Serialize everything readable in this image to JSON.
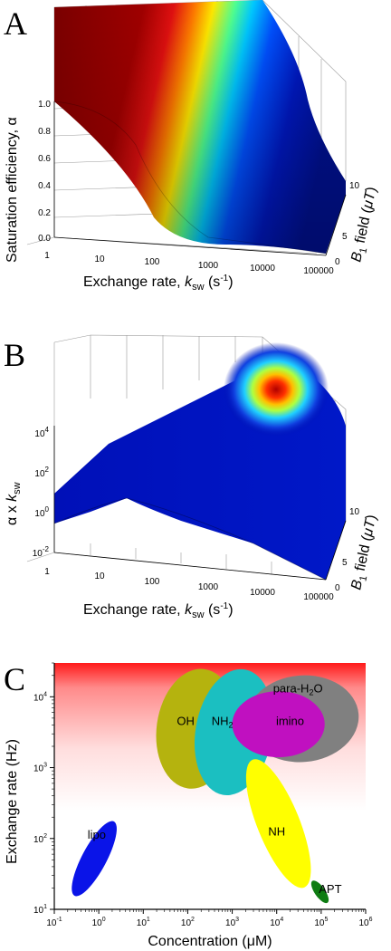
{
  "panels": {
    "A": {
      "letter": "A",
      "z_label": "Saturation efficiency, α",
      "x_label_pre": "Exchange rate, ",
      "x_label_k": "k",
      "x_label_sub": "sw",
      "x_label_post": " (s",
      "x_label_sup": "-1",
      "x_label_end": ")",
      "b_label_pre": "B",
      "b_label_sub": "1",
      "b_label_post": " field (",
      "b_label_mu": "μT",
      "b_label_end": ")",
      "z_ticks": [
        "1.0",
        "0.8",
        "0.6",
        "0.4",
        "0.2",
        "0.0"
      ],
      "x_ticks": [
        "1",
        "10",
        "100",
        "1000",
        "10000",
        "100000"
      ],
      "b_ticks": [
        "0",
        "5",
        "10"
      ]
    },
    "B": {
      "letter": "B",
      "z_label_pre": "α x ",
      "z_label_k": "k",
      "z_label_sub": "sw",
      "x_label_pre": "Exchange rate, ",
      "x_label_k": "k",
      "x_label_sub": "sw",
      "x_label_post": " (s",
      "x_label_sup": "-1",
      "x_label_end": ")",
      "b_label_pre": "B",
      "b_label_sub": "1",
      "b_label_post": " field (",
      "b_label_mu": "μT",
      "b_label_end": ")",
      "z_ticks": [
        {
          "base": "10",
          "exp": "4"
        },
        {
          "base": "10",
          "exp": "2"
        },
        {
          "base": "10",
          "exp": "0"
        },
        {
          "base": "10",
          "exp": "-2"
        }
      ],
      "x_ticks": [
        "1",
        "10",
        "100",
        "1000",
        "10000",
        "100000"
      ],
      "b_ticks": [
        "0",
        "5",
        "10"
      ]
    },
    "C": {
      "letter": "C",
      "x_label": "Concentration (μM)",
      "y_label": "Exchange rate (Hz)",
      "x_ticks": [
        {
          "base": "10",
          "exp": "-1"
        },
        {
          "base": "10",
          "exp": "0"
        },
        {
          "base": "10",
          "exp": "1"
        },
        {
          "base": "10",
          "exp": "2"
        },
        {
          "base": "10",
          "exp": "3"
        },
        {
          "base": "10",
          "exp": "4"
        },
        {
          "base": "10",
          "exp": "5"
        },
        {
          "base": "10",
          "exp": "6"
        }
      ],
      "y_ticks": [
        {
          "base": "10",
          "exp": "1"
        },
        {
          "base": "10",
          "exp": "2"
        },
        {
          "base": "10",
          "exp": "3"
        },
        {
          "base": "10",
          "exp": "4"
        }
      ]
    }
  },
  "chart_data": [
    {
      "type": "surface3d",
      "panel": "A",
      "xlabel": "Exchange rate, ksw (s-1)",
      "ylabel": "B1 field (μT)",
      "zlabel": "Saturation efficiency, α",
      "x_scale": "log",
      "xlim": [
        1,
        100000
      ],
      "ylim": [
        0,
        10
      ],
      "zlim": [
        0,
        1
      ],
      "colormap": "jet",
      "description_values": {
        "ksw": [
          1,
          10,
          100,
          1000,
          10000,
          100000
        ],
        "alpha_at_B1_10": [
          1.0,
          1.0,
          1.0,
          0.95,
          0.5,
          0.05
        ]
      }
    },
    {
      "type": "surface3d",
      "panel": "B",
      "xlabel": "Exchange rate, ksw (s-1)",
      "ylabel": "B1 field (μT)",
      "zlabel": "α x ksw",
      "x_scale": "log",
      "z_scale": "log",
      "xlim": [
        1,
        100000
      ],
      "ylim": [
        0,
        10
      ],
      "zlim": [
        0.01,
        10000
      ],
      "colormap": "jet"
    },
    {
      "type": "scatter",
      "panel": "C",
      "x_scale": "log",
      "y_scale": "log",
      "xlim": [
        0.1,
        1000000
      ],
      "ylim": [
        10,
        30000
      ],
      "xlabel": "Concentration (μM)",
      "ylabel": "Exchange rate (Hz)",
      "regions": [
        {
          "label": "lipo",
          "conc_range": [
            0.25,
            2.5
          ],
          "rate_range": [
            15,
            180
          ],
          "color": "#0a14e8"
        },
        {
          "label": "OH",
          "conc_range": [
            20,
            1200
          ],
          "rate_range": [
            500,
            25000
          ],
          "color": "#b5b30e"
        },
        {
          "label": "NH2",
          "conc_range": [
            150,
            8000
          ],
          "rate_range": [
            400,
            25000
          ],
          "color": "#1bbfc1"
        },
        {
          "label": "para-H2O",
          "conc_range": [
            2000,
            700000
          ],
          "rate_range": [
            1200,
            20000
          ],
          "color": "#808080"
        },
        {
          "label": "imino",
          "conc_range": [
            1000,
            120000
          ],
          "rate_range": [
            1400,
            12000
          ],
          "color": "#c010c0"
        },
        {
          "label": "NH",
          "conc_range": [
            1500,
            80000
          ],
          "rate_range": [
            22,
            1200
          ],
          "color": "#ffff00"
        },
        {
          "label": "APT",
          "conc_range": [
            55000,
            160000
          ],
          "rate_range": [
            13,
            24
          ],
          "color": "#0e7c12"
        }
      ],
      "background_gradient": [
        "#ff0000",
        "#ffffff"
      ]
    }
  ],
  "colors": {
    "jet_dark_red": "#800000",
    "jet_blue": "#0010b0"
  }
}
